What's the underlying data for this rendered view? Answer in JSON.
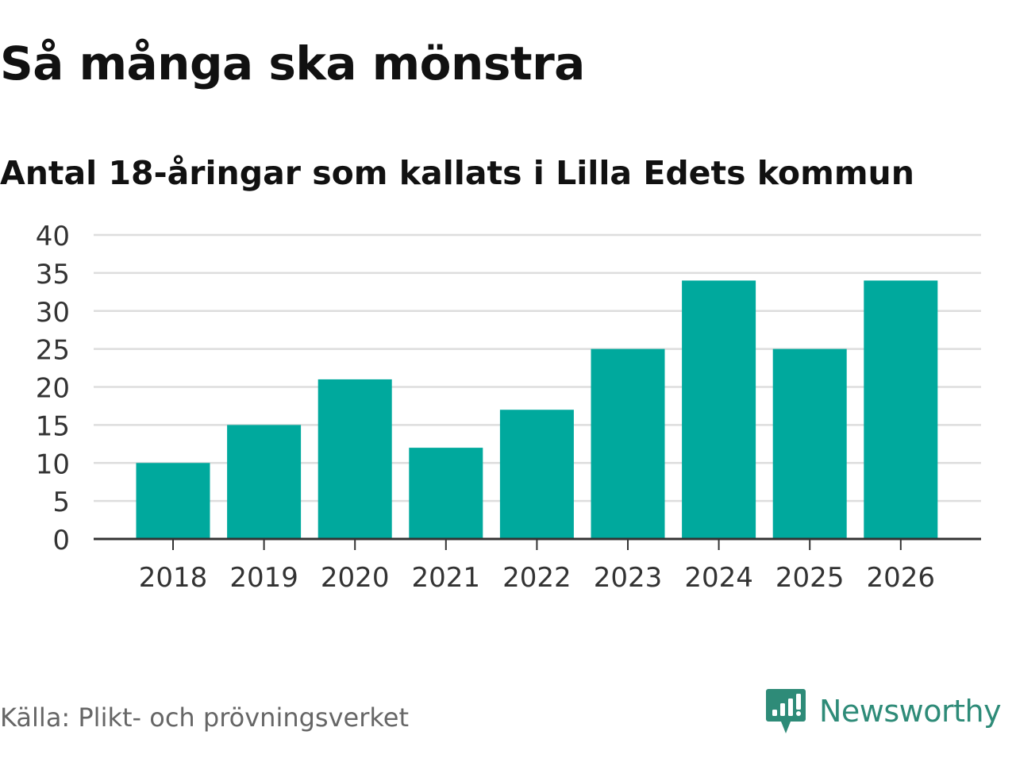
{
  "header": {
    "title": "Så många ska mönstra",
    "subtitle": "Antal 18-åringar som kallats i Lilla Edets kommun"
  },
  "footer": {
    "source": "Källa: Plikt- och prövningsverket",
    "brand_name": "Newsworthy",
    "brand_icon": "newsworthy-logo-icon"
  },
  "colors": {
    "bar": "#00a99d",
    "grid": "#dddddd",
    "axis": "#333333",
    "brand": "#2e8b78"
  },
  "chart_data": {
    "type": "bar",
    "categories": [
      "2018",
      "2019",
      "2020",
      "2021",
      "2022",
      "2023",
      "2024",
      "2025",
      "2026"
    ],
    "values": [
      10,
      15,
      21,
      12,
      17,
      25,
      34,
      25,
      34
    ],
    "yticks": [
      "0",
      "5",
      "10",
      "15",
      "20",
      "25",
      "30",
      "35",
      "40"
    ],
    "ylim": [
      0,
      40
    ],
    "grid": true,
    "xlabel": "",
    "ylabel": ""
  }
}
